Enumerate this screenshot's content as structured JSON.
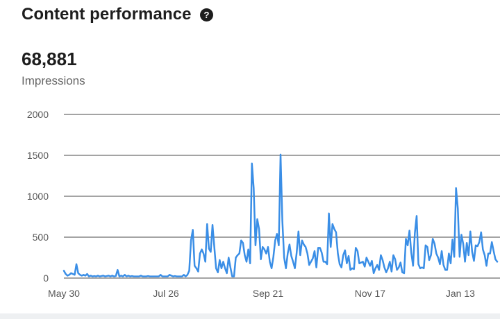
{
  "card": {
    "title": "Content performance",
    "help_icon": "question-circle-icon",
    "metric_value": "68,881",
    "metric_label": "Impressions"
  },
  "colors": {
    "line": "#3a8ee6",
    "grid": "#4a4a4a",
    "axis_text": "#555555",
    "footer_band": "#eef0f2"
  },
  "chart_data": {
    "type": "line",
    "title": "",
    "xlabel": "",
    "ylabel": "",
    "ylim": [
      0,
      2000
    ],
    "yticks": [
      0,
      500,
      1000,
      1500,
      2000
    ],
    "ytick_labels": [
      "0",
      "500",
      "1000",
      "1500",
      "2000"
    ],
    "xtick_labels": [
      "May 30",
      "Jul 26",
      "Sep 21",
      "Nov 17",
      "Jan 13"
    ],
    "xtick_index": [
      0,
      57,
      114,
      171,
      228
    ],
    "grid": true,
    "series": [
      {
        "values": [
          90,
          50,
          30,
          40,
          60,
          50,
          40,
          170,
          60,
          40,
          30,
          40,
          30,
          50,
          20,
          30,
          20,
          25,
          20,
          30,
          20,
          25,
          30,
          20,
          25,
          30,
          20,
          30,
          20,
          25,
          100,
          20,
          30,
          20,
          40,
          20,
          30,
          20,
          25,
          20,
          20,
          20,
          20,
          30,
          20,
          20,
          20,
          25,
          20,
          20,
          20,
          20,
          20,
          20,
          40,
          20,
          20,
          20,
          20,
          40,
          30,
          20,
          25,
          20,
          20,
          20,
          20,
          40,
          20,
          40,
          90,
          460,
          590,
          150,
          120,
          80,
          300,
          350,
          300,
          200,
          660,
          360,
          320,
          650,
          380,
          120,
          70,
          220,
          120,
          200,
          120,
          60,
          250,
          130,
          20,
          20,
          250,
          280,
          300,
          460,
          430,
          280,
          200,
          350,
          180,
          1400,
          1100,
          400,
          720,
          600,
          230,
          380,
          350,
          300,
          380,
          200,
          120,
          260,
          460,
          540,
          400,
          1510,
          700,
          250,
          120,
          300,
          410,
          270,
          200,
          120,
          310,
          570,
          280,
          460,
          410,
          380,
          300,
          160,
          200,
          240,
          330,
          130,
          370,
          370,
          310,
          200,
          200,
          170,
          790,
          380,
          660,
          600,
          560,
          300,
          170,
          130,
          280,
          340,
          180,
          270,
          100,
          120,
          110,
          370,
          330,
          180,
          190,
          200,
          140,
          250,
          200,
          150,
          210,
          60,
          120,
          160,
          100,
          280,
          220,
          130,
          70,
          120,
          200,
          80,
          280,
          230,
          100,
          130,
          190,
          70,
          60,
          480,
          400,
          580,
          310,
          150,
          550,
          760,
          170,
          120,
          130,
          120,
          400,
          380,
          220,
          280,
          480,
          420,
          300,
          250,
          170,
          330,
          160,
          100,
          100,
          300,
          180,
          470,
          260,
          1100,
          850,
          260,
          530,
          420,
          200,
          430,
          280,
          570,
          320,
          210,
          400,
          390,
          440,
          560,
          350,
          280,
          150,
          300,
          300,
          440,
          330,
          230,
          200
        ]
      }
    ]
  }
}
